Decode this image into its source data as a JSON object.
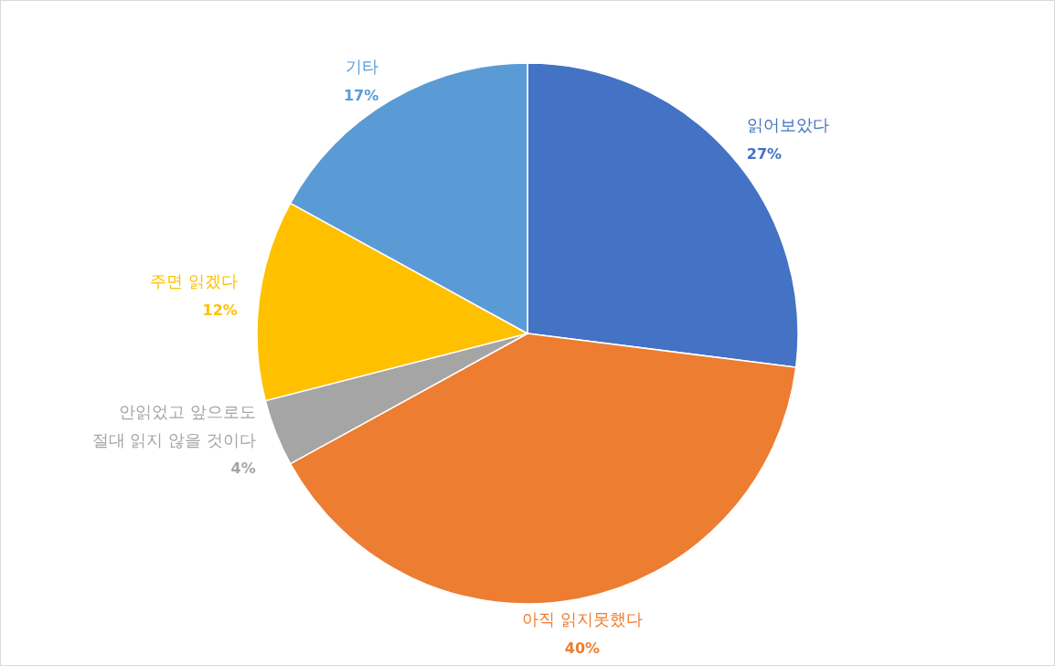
{
  "chart_data": {
    "type": "pie",
    "categories": [
      "읽어보았다",
      "아직 읽지못했다",
      "안읽었고 앞으로도\n절대 읽지 않을 것이다",
      "주면 읽겠다",
      "기타"
    ],
    "values": [
      27,
      40,
      4,
      12,
      17
    ],
    "value_labels": [
      "27%",
      "40%",
      "4%",
      "12%",
      "17%"
    ],
    "colors": [
      "#4472c4",
      "#ed7d31",
      "#a5a5a5",
      "#ffc000",
      "#5b9bd5"
    ]
  }
}
